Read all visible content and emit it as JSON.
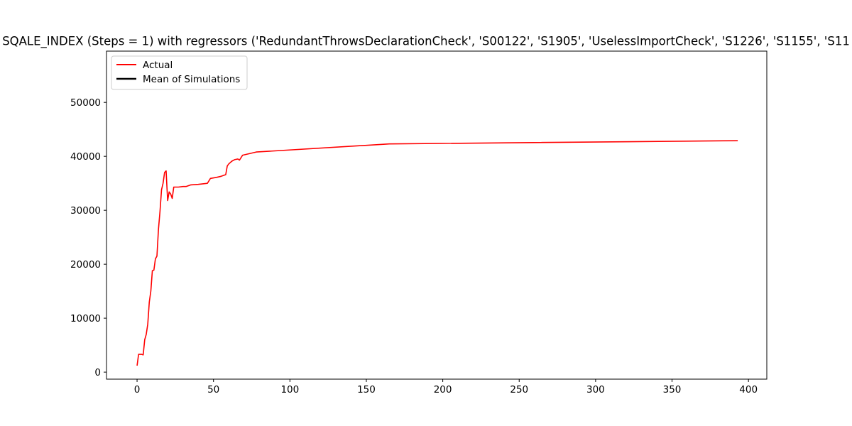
{
  "chart_data": {
    "type": "line",
    "title": "SQALE_INDEX (Steps = 1) with regressors ('RedundantThrowsDeclarationCheck', 'S00122', 'S1905', 'UselessImportCheck', 'S1226', 'S1155', 'S11",
    "xlabel": "",
    "ylabel": "",
    "xlim": [
      -20,
      412
    ],
    "ylim": [
      -1300,
      59500
    ],
    "xticks": [
      0,
      50,
      100,
      150,
      200,
      250,
      300,
      350,
      400
    ],
    "yticks": [
      0,
      10000,
      20000,
      30000,
      40000,
      50000
    ],
    "grid": false,
    "legend_position": "top-left",
    "series": [
      {
        "name": "Actual",
        "color": "#ff0000",
        "x": [
          0,
          1,
          2,
          3,
          4,
          5,
          6,
          7,
          8,
          9,
          10,
          11,
          12,
          13,
          14,
          15,
          16,
          17,
          18,
          19,
          20,
          21,
          22,
          23,
          24,
          25,
          27,
          30,
          32,
          35,
          40,
          46,
          48,
          52,
          55,
          58,
          59,
          60,
          62,
          64,
          66,
          67,
          69,
          72,
          78,
          165,
          393
        ],
        "y": [
          1200,
          3300,
          3300,
          3300,
          3200,
          6000,
          7000,
          8900,
          13000,
          15000,
          18800,
          18900,
          21000,
          21500,
          26500,
          29800,
          33800,
          35000,
          37000,
          37300,
          31800,
          33400,
          33000,
          32200,
          34300,
          34300,
          34300,
          34400,
          34400,
          34700,
          34800,
          35000,
          35900,
          36100,
          36300,
          36600,
          38200,
          38600,
          39100,
          39400,
          39500,
          39300,
          40200,
          40400,
          40800,
          42300,
          42900
        ]
      },
      {
        "name": "Mean of Simulations",
        "color": "#000000",
        "x": [],
        "y": []
      }
    ]
  }
}
